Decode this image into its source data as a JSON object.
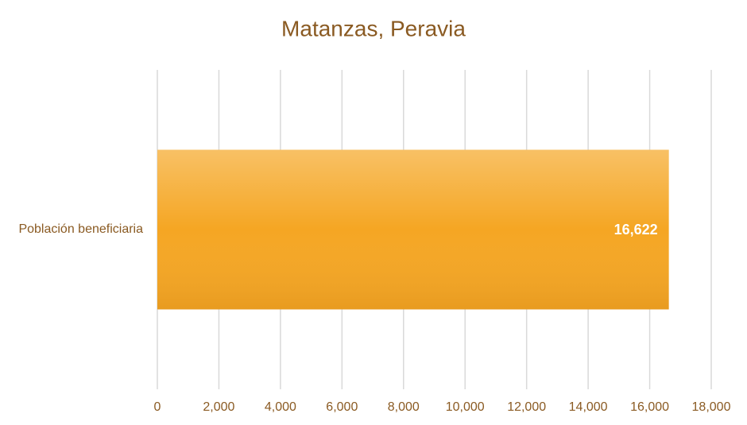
{
  "chart_data": {
    "type": "bar",
    "orientation": "horizontal",
    "title": "Matanzas, Peravia",
    "categories": [
      "Población beneficiaria"
    ],
    "values": [
      16622
    ],
    "value_labels": [
      "16,622"
    ],
    "color": "#f5a623",
    "xlim": [
      0,
      18000
    ],
    "xticks": [
      0,
      {
        "value": 2000,
        "label": "2,000"
      },
      {
        "value": 4000,
        "label": "4,000"
      },
      {
        "value": 6000,
        "label": "6,000"
      },
      {
        "value": 8000,
        "label": "8,000"
      },
      {
        "value": 10000,
        "label": "10,000"
      },
      {
        "value": 12000,
        "label": "12,000"
      },
      {
        "value": 14000,
        "label": "14,000"
      },
      {
        "value": 16000,
        "label": "16,000"
      },
      {
        "value": 18000,
        "label": "18,000"
      }
    ],
    "grid": true
  }
}
